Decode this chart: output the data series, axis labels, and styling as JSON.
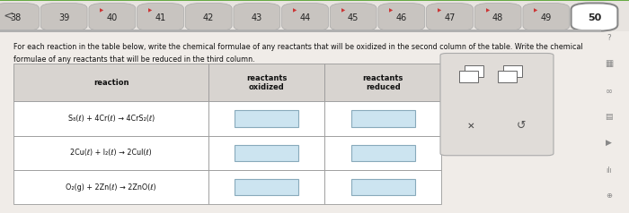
{
  "nav_numbers": [
    "38",
    "39",
    "40",
    "41",
    "42",
    "43",
    "44",
    "45",
    "46",
    "47",
    "48",
    "49",
    "50"
  ],
  "nav_flagged": [
    false,
    false,
    true,
    true,
    false,
    false,
    true,
    true,
    true,
    true,
    true,
    true,
    false
  ],
  "nav_current": 12,
  "col_headers": [
    "reaction",
    "reactants\noxidized",
    "reactants\nreduced"
  ],
  "rows": [
    "S₈(ℓ) + 4Cr(ℓ) → 4CrS₂(ℓ)",
    "2Cu(ℓ) + I₂(ℓ) → 2CuI(ℓ)",
    "O₂(g) + 2Zn(ℓ) → 2ZnO(ℓ)"
  ],
  "title_line1": "For each reaction in the table below, write the chemical formulae of any reactants that will be oxidized in the second column of the table. Write the chemical",
  "title_line2": "formulae of any reactants that will be reduced in the third column.",
  "bg_color": "#e8e4e0",
  "content_bg": "#f0ece8",
  "nav_btn_color": "#c8c4c0",
  "nav_current_color": "#ffffff",
  "table_header_bg": "#d8d4d0",
  "table_row_bg": "#ffffff",
  "table_border": "#999999",
  "answer_box_fill": "#cce4f0",
  "answer_box_border": "#88aabb",
  "panel_bg": "#e0dcd8",
  "panel_border": "#aaaaaa",
  "flag_color": "#cc3333"
}
